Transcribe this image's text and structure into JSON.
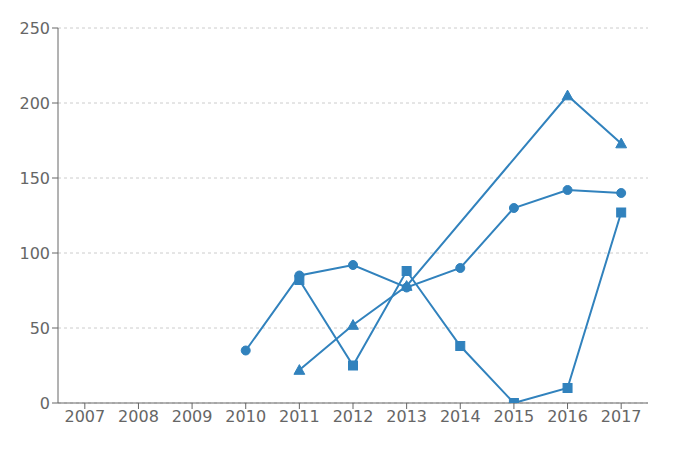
{
  "chart_data": {
    "type": "line",
    "xlim": [
      2006.5,
      2017.5
    ],
    "ylim": [
      0,
      250
    ],
    "xticks": [
      2007,
      2008,
      2009,
      2010,
      2011,
      2012,
      2013,
      2014,
      2015,
      2016,
      2017
    ],
    "yticks": [
      0,
      50,
      100,
      150,
      200,
      250
    ],
    "grid": true,
    "series": [
      {
        "marker": "circle",
        "x": [
          2010,
          2011,
          2012,
          2013,
          2014,
          2015,
          2016,
          2017
        ],
        "values": [
          35,
          85,
          92,
          77,
          90,
          130,
          142,
          140
        ]
      },
      {
        "marker": "square",
        "x": [
          2011,
          2012,
          2013,
          2014,
          2015,
          2016,
          2017
        ],
        "values": [
          82,
          25,
          88,
          38,
          0,
          10,
          127
        ]
      },
      {
        "marker": "triangle",
        "x": [
          2011,
          2012,
          2013,
          2016,
          2017
        ],
        "values": [
          22,
          52,
          78,
          205,
          173
        ]
      }
    ]
  }
}
